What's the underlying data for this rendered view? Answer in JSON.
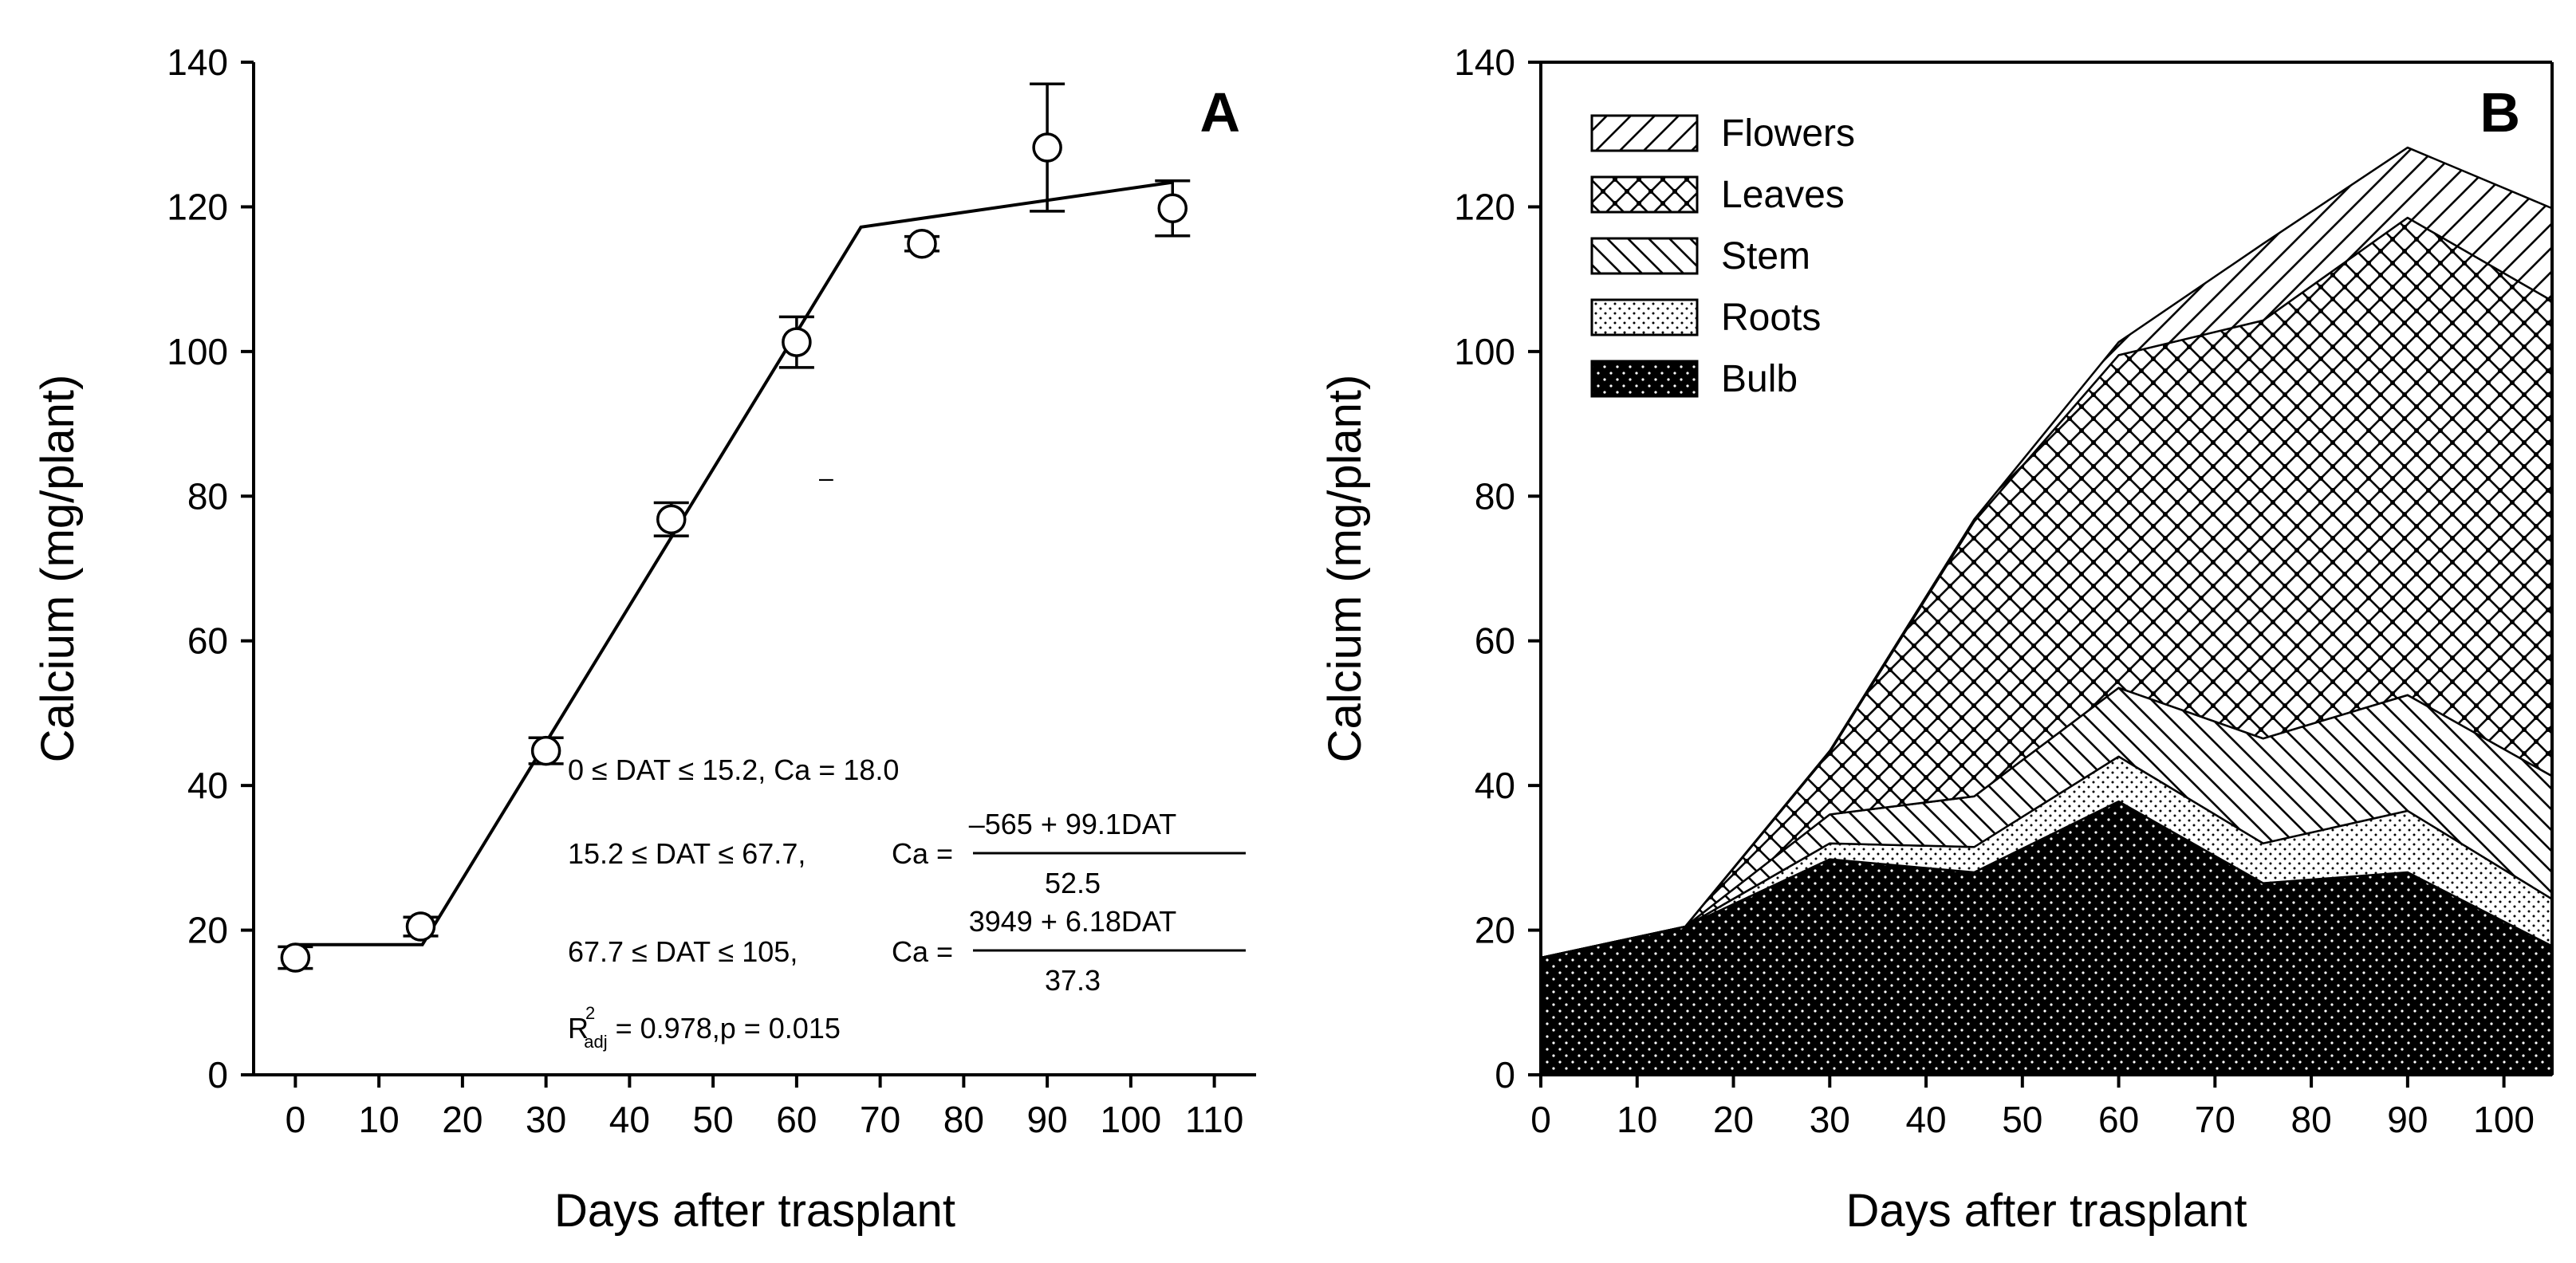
{
  "panel_a": {
    "label": "A",
    "equations": {
      "eq1": "0 ≤ DAT ≤ 15.2,   Ca = 18.0",
      "eq2_cond": "15.2 ≤ DAT ≤ 67.7,",
      "eq2_ca": "Ca =",
      "eq2_num": "–565 + 99.1DAT",
      "eq2_den": "52.5",
      "eq3_cond": "67.7 ≤ DAT ≤ 105,",
      "eq3_ca": "Ca =",
      "eq3_num": "3949 + 6.18DAT",
      "eq3_den": "37.3",
      "r2_main": "R",
      "r2_sup": "2",
      "r2_sub": "adj",
      "r2_rest": " = 0.978,p = 0.015"
    },
    "stray_mark": "–"
  },
  "chart_data": [
    {
      "type": "scatter",
      "id": "A",
      "title": "A",
      "xlabel": "Days after trasplant",
      "ylabel": "Calcium (mg/plant)",
      "xlim": [
        -5,
        115
      ],
      "ylim": [
        0,
        140
      ],
      "xticks": [
        0,
        10,
        20,
        30,
        40,
        50,
        60,
        70,
        80,
        90,
        100,
        110
      ],
      "yticks": [
        0,
        20,
        40,
        60,
        80,
        100,
        120,
        140
      ],
      "points": {
        "x": [
          0,
          15,
          30,
          45,
          60,
          75,
          90,
          105
        ],
        "y": [
          16.2,
          20.5,
          44.8,
          76.8,
          101.3,
          114.9,
          128.2,
          119.8
        ],
        "err": [
          1.5,
          1.3,
          1.8,
          2.3,
          3.5,
          1.0,
          8.8,
          3.8
        ]
      },
      "fit_line": {
        "x": [
          0,
          15.2,
          67.7,
          105
        ],
        "y": [
          18.0,
          18.0,
          117.2,
          123.4
        ]
      }
    },
    {
      "type": "area",
      "id": "B",
      "title": "B",
      "xlabel": "Days after trasplant",
      "ylabel": "Calcium (mg/plant)",
      "xlim": [
        0,
        105
      ],
      "ylim": [
        0,
        140
      ],
      "xticks": [
        0,
        10,
        20,
        30,
        40,
        50,
        60,
        70,
        80,
        90,
        100
      ],
      "yticks": [
        0,
        20,
        40,
        60,
        80,
        100,
        120,
        140
      ],
      "x": [
        0,
        15,
        30,
        45,
        60,
        75,
        90,
        105
      ],
      "stacked": true,
      "series": [
        {
          "name": "Bulb",
          "pattern": "bulb",
          "values": [
            16.2,
            20.5,
            29.8,
            28.0,
            37.8,
            26.5,
            28.0,
            17.8
          ]
        },
        {
          "name": "Roots",
          "pattern": "roots",
          "values": [
            0,
            0,
            2.2,
            3.5,
            6.2,
            5.5,
            8.5,
            6.5
          ]
        },
        {
          "name": "Stem",
          "pattern": "stem",
          "values": [
            0,
            0,
            4.0,
            7.0,
            9.5,
            14.5,
            16.0,
            17.0
          ]
        },
        {
          "name": "Leaves",
          "pattern": "leaves",
          "values": [
            0,
            0,
            8.6,
            38.0,
            46.0,
            57.8,
            66.0,
            65.7
          ]
        },
        {
          "name": "Flowers",
          "pattern": "flowers",
          "values": [
            0,
            0,
            0.2,
            0.3,
            1.8,
            10.6,
            9.7,
            12.8
          ]
        }
      ],
      "legend_order": [
        "Flowers",
        "Leaves",
        "Stem",
        "Roots",
        "Bulb"
      ],
      "legend_position": "top-left"
    }
  ]
}
